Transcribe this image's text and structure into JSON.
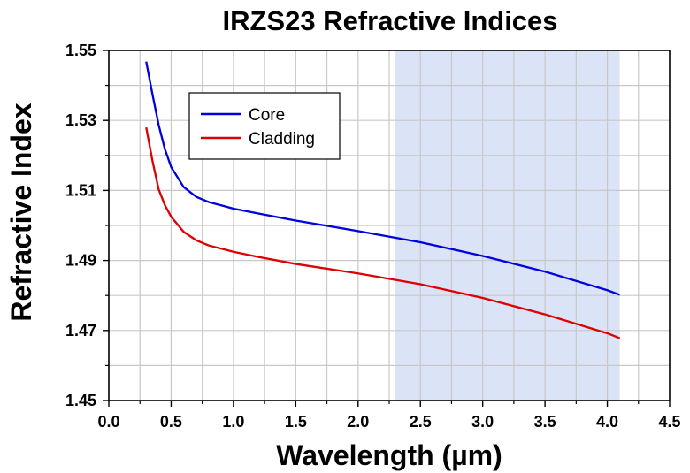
{
  "chart_data": {
    "type": "line",
    "title": "IRZS23 Refractive Indices",
    "xlabel": "Wavelength (µm)",
    "ylabel": "Refractive Index",
    "xlim": [
      0.0,
      4.5
    ],
    "ylim": [
      1.45,
      1.55
    ],
    "x_ticks": [
      "0.0",
      "0.5",
      "1.0",
      "1.5",
      "2.0",
      "2.5",
      "3.0",
      "3.5",
      "4.0",
      "4.5"
    ],
    "y_ticks": [
      "1.45",
      "1.47",
      "1.49",
      "1.51",
      "1.53",
      "1.55"
    ],
    "grid": true,
    "legend_position": "top-left",
    "highlight_band": {
      "x_range": [
        2.3,
        4.1
      ],
      "color": "#dbe3f7"
    },
    "series": [
      {
        "name": "Core",
        "color": "#0000dd",
        "x": [
          0.3,
          0.35,
          0.4,
          0.45,
          0.5,
          0.6,
          0.7,
          0.8,
          1.0,
          1.2,
          1.5,
          2.0,
          2.5,
          3.0,
          3.5,
          4.0,
          4.1
        ],
        "y": [
          1.5468,
          1.5375,
          1.5287,
          1.5218,
          1.5167,
          1.511,
          1.5082,
          1.5067,
          1.5048,
          1.5034,
          1.5014,
          1.4984,
          1.4952,
          1.4913,
          1.4868,
          1.4815,
          1.4802
        ]
      },
      {
        "name": "Cladding",
        "color": "#dd0000",
        "x": [
          0.3,
          0.35,
          0.4,
          0.45,
          0.5,
          0.6,
          0.7,
          0.8,
          1.0,
          1.2,
          1.5,
          2.0,
          2.5,
          3.0,
          3.5,
          4.0,
          4.1
        ],
        "y": [
          1.528,
          1.5185,
          1.5103,
          1.5058,
          1.5025,
          1.4982,
          1.4958,
          1.4943,
          1.4925,
          1.491,
          1.489,
          1.4863,
          1.4832,
          1.4793,
          1.4746,
          1.4692,
          1.4678
        ]
      }
    ]
  }
}
